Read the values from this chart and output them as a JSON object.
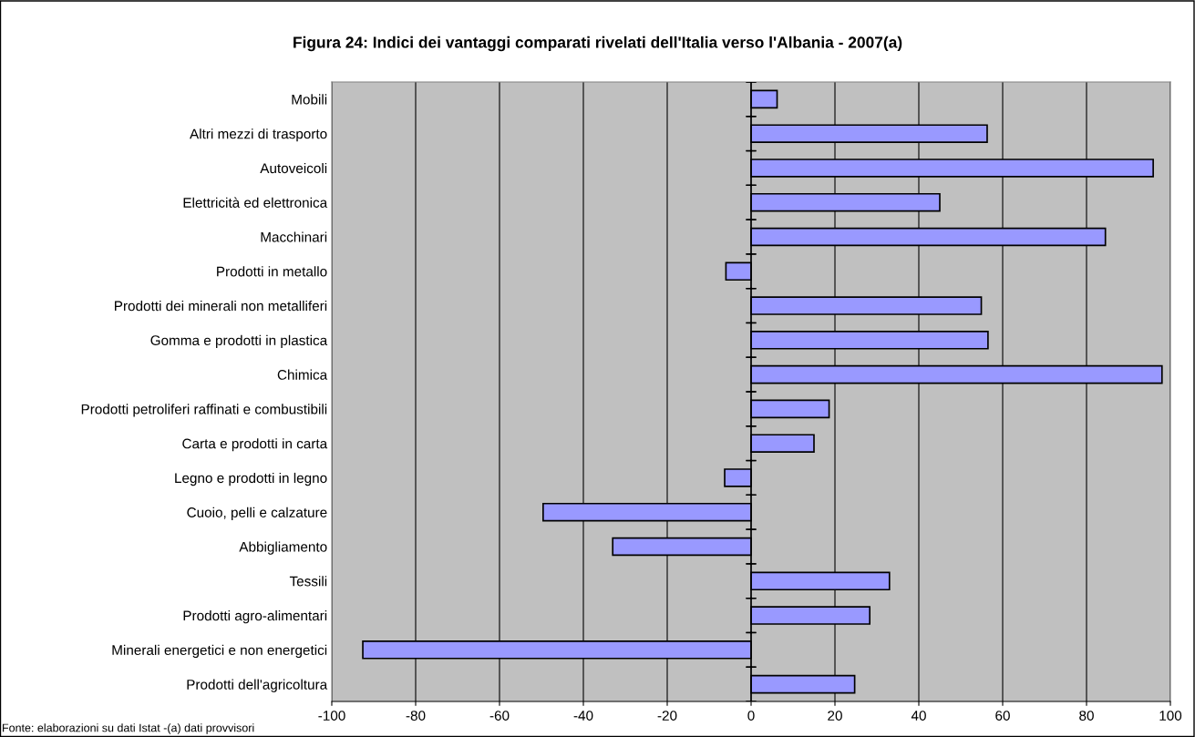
{
  "chart_data": {
    "type": "bar",
    "orientation": "horizontal",
    "title": "Figura 24: Indici dei vantaggi comparati rivelati dell'Italia verso l'Albania - 2007(a)",
    "categories": [
      "Mobili",
      "Altri mezzi di trasporto",
      "Autoveicoli",
      "Elettricità ed elettronica",
      "Macchinari",
      "Prodotti in metallo",
      "Prodotti dei minerali non metalliferi",
      "Gomma e prodotti in plastica",
      "Chimica",
      "Prodotti petroliferi raffinati e combustibili",
      "Carta e prodotti in carta",
      "Legno e prodotti in legno",
      "Cuoio, pelli e calzature",
      "Abbigliamento",
      "Tessili",
      "Prodotti agro-alimentari",
      "Minerali energetici e non energetici",
      "Prodotti dell'agricoltura"
    ],
    "values": [
      6.2,
      56.3,
      95.9,
      45,
      84.5,
      -6,
      54.9,
      56.5,
      98,
      18.6,
      15,
      -6.3,
      -49.6,
      -33,
      33,
      28.3,
      -92.6,
      24.7
    ],
    "color": "#9999ff",
    "xlim": [
      -100,
      100
    ],
    "xticks": [
      -100,
      -80,
      -60,
      -40,
      -20,
      0,
      20,
      40,
      60,
      80,
      100
    ],
    "grid": "x",
    "legend": false,
    "annotations": [
      "Fonte: elaborazioni su dati Istat -(a) dati provvisori"
    ]
  }
}
